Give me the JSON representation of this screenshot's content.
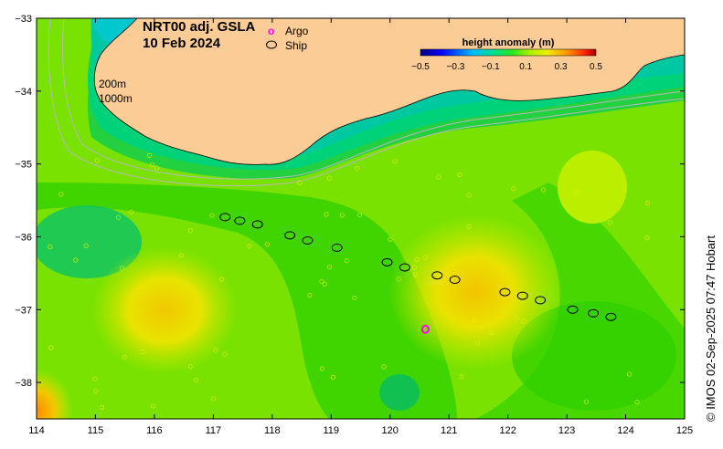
{
  "map": {
    "title_line1": "NRT00 adj. GSLA",
    "title_line2": "10 Feb 2024",
    "lon_range": [
      114,
      125
    ],
    "lat_range": [
      -38.5,
      -33
    ],
    "lon_ticks": [
      "114",
      "115",
      "116",
      "117",
      "118",
      "119",
      "120",
      "121",
      "122",
      "123",
      "124",
      "125"
    ],
    "lat_ticks": [
      "-33",
      "-34",
      "-35",
      "-36",
      "-37",
      "-38"
    ],
    "isobaths": [
      "200m",
      "1000m"
    ],
    "credit": "© IMOS 02-Sep-2025 07:47 Hobart"
  },
  "legend": {
    "argo_symbol": "o",
    "argo_label": "Argo",
    "ship_label": "Ship"
  },
  "colorbar": {
    "title": "height anomaly (m)",
    "ticks": [
      "−0.5",
      "−0.3",
      "−0.1",
      "0.1",
      "0.3",
      "0.5"
    ]
  },
  "colors": {
    "land": "#fccc96",
    "argo": "#ff00ff",
    "ship": "#000000",
    "isobath": "#b8b8b8"
  },
  "observations": {
    "ship_track": [
      {
        "lon": 117.2,
        "lat": -35.73
      },
      {
        "lon": 117.45,
        "lat": -35.78
      },
      {
        "lon": 117.75,
        "lat": -35.83
      },
      {
        "lon": 118.3,
        "lat": -35.98
      },
      {
        "lon": 118.6,
        "lat": -36.05
      },
      {
        "lon": 119.1,
        "lat": -36.15
      },
      {
        "lon": 119.95,
        "lat": -36.35
      },
      {
        "lon": 120.25,
        "lat": -36.42
      },
      {
        "lon": 120.8,
        "lat": -36.53
      },
      {
        "lon": 121.1,
        "lat": -36.59
      },
      {
        "lon": 121.95,
        "lat": -36.76
      },
      {
        "lon": 122.25,
        "lat": -36.81
      },
      {
        "lon": 122.55,
        "lat": -36.87
      },
      {
        "lon": 123.1,
        "lat": -37.0
      },
      {
        "lon": 123.45,
        "lat": -37.05
      },
      {
        "lon": 123.75,
        "lat": -37.1
      }
    ],
    "argo": [
      {
        "lon": 120.6,
        "lat": -37.27
      }
    ]
  }
}
